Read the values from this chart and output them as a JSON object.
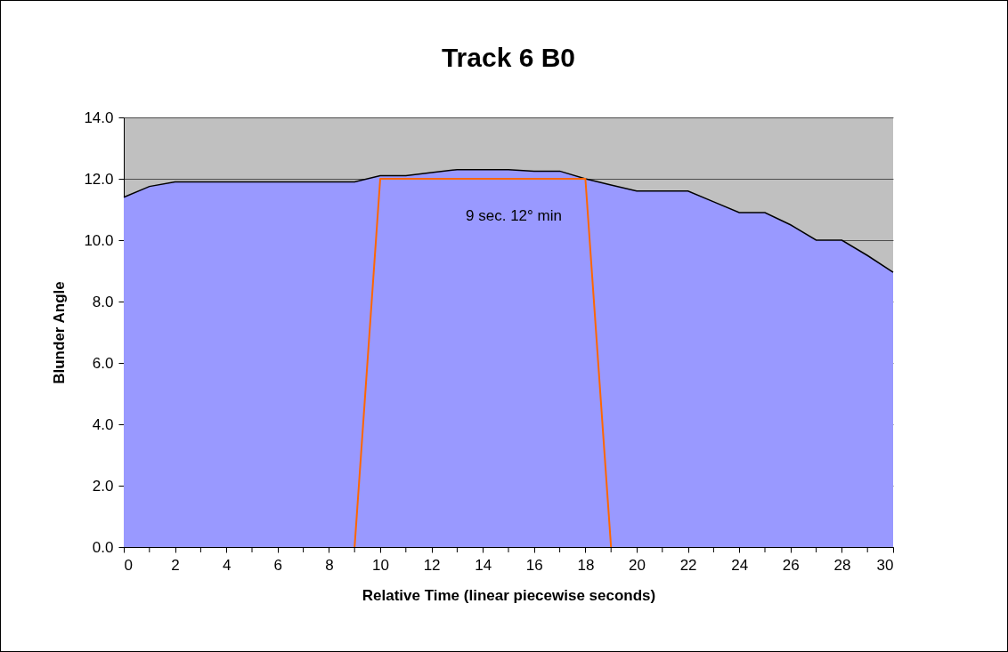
{
  "chart_data": {
    "type": "area",
    "title": "Track 6 B0",
    "xlabel": "Relative Time (linear piecewise seconds)",
    "ylabel": "Blunder Angle",
    "x": [
      0,
      1,
      2,
      3,
      4,
      5,
      6,
      7,
      8,
      9,
      10,
      11,
      12,
      13,
      14,
      15,
      16,
      17,
      18,
      19,
      20,
      21,
      22,
      23,
      24,
      25,
      26,
      27,
      28,
      29,
      30
    ],
    "series": [
      {
        "color": "#9999ff",
        "values": [
          11.4,
          11.75,
          11.9,
          11.9,
          11.9,
          11.9,
          11.9,
          11.9,
          11.9,
          11.9,
          12.1,
          12.1,
          12.2,
          12.3,
          12.3,
          12.3,
          12.25,
          12.25,
          12.0,
          11.8,
          11.6,
          11.6,
          11.6,
          11.25,
          10.9,
          10.9,
          10.5,
          10.0,
          10.0,
          9.5,
          8.95
        ]
      },
      {
        "type": "line",
        "color": "#ff6600",
        "x": [
          9,
          10,
          18,
          19
        ],
        "values": [
          0,
          12,
          12,
          0
        ]
      }
    ],
    "xlim": [
      0,
      30
    ],
    "xticks": [
      0,
      {
        "value": 1,
        "label": null
      },
      2,
      {
        "value": 3,
        "label": null
      },
      4,
      {
        "value": 5,
        "label": null
      },
      6,
      {
        "value": 7,
        "label": null
      },
      8,
      {
        "value": 9,
        "label": null
      },
      10,
      {
        "value": 11,
        "label": null
      },
      12,
      {
        "value": 13,
        "label": null
      },
      14,
      {
        "value": 15,
        "label": null
      },
      16,
      {
        "value": 17,
        "label": null
      },
      18,
      {
        "value": 19,
        "label": null
      },
      20,
      {
        "value": 21,
        "label": null
      },
      22,
      {
        "value": 23,
        "label": null
      },
      24,
      {
        "value": 25,
        "label": null
      },
      26,
      {
        "value": 27,
        "label": null
      },
      28,
      {
        "value": 29,
        "label": null
      },
      30
    ],
    "ylim": [
      0,
      14
    ],
    "yticks": [
      {
        "value": 0,
        "label": "0.0"
      },
      {
        "value": 2,
        "label": "2.0"
      },
      {
        "value": 4,
        "label": "4.0"
      },
      {
        "value": 6,
        "label": "6.0"
      },
      {
        "value": 8,
        "label": "8.0"
      },
      {
        "value": 10,
        "label": "10.0"
      },
      {
        "value": 12,
        "label": "12.0"
      },
      {
        "value": 14,
        "label": "14.0"
      }
    ],
    "grid": "y",
    "annotations": [
      "9 sec. 12° min"
    ]
  }
}
